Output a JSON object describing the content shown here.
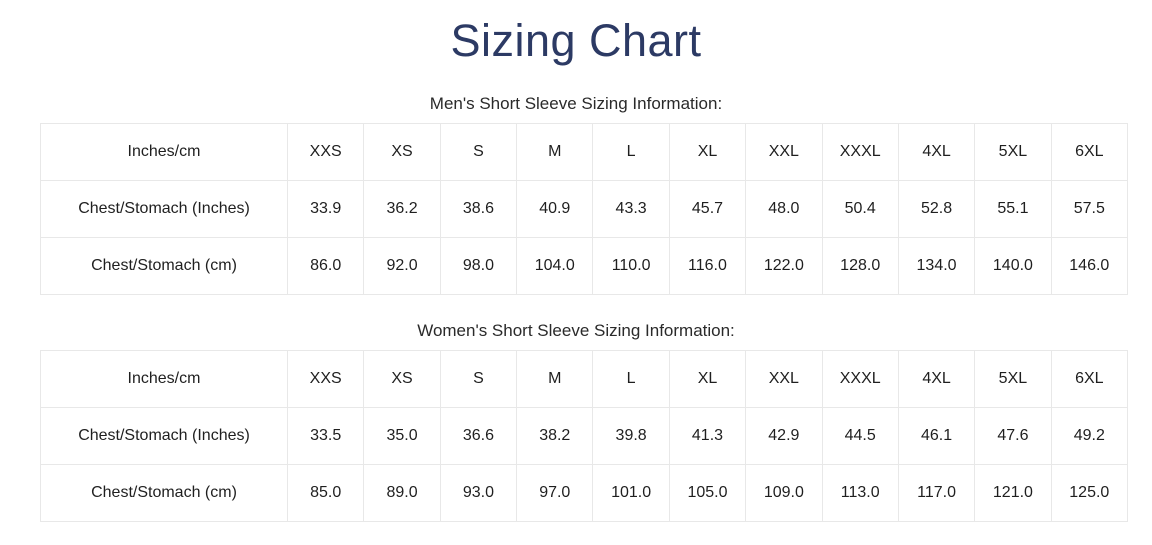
{
  "page_title": "Sizing Chart",
  "colors": {
    "title": "#2c3a64",
    "body_text": "#1f1f1f",
    "table_border": "#e8e8e8",
    "background": "#ffffff"
  },
  "tables": [
    {
      "caption": "Men's Short Sleeve Sizing Information:",
      "header": [
        "Inches/cm",
        "XXS",
        "XS",
        "S",
        "M",
        "L",
        "XL",
        "XXL",
        "XXXL",
        "4XL",
        "5XL",
        "6XL"
      ],
      "rows": [
        [
          "Chest/Stomach (Inches)",
          "33.9",
          "36.2",
          "38.6",
          "40.9",
          "43.3",
          "45.7",
          "48.0",
          "50.4",
          "52.8",
          "55.1",
          "57.5"
        ],
        [
          "Chest/Stomach (cm)",
          "86.0",
          "92.0",
          "98.0",
          "104.0",
          "110.0",
          "116.0",
          "122.0",
          "128.0",
          "134.0",
          "140.0",
          "146.0"
        ]
      ]
    },
    {
      "caption": "Women's Short Sleeve Sizing Information:",
      "header": [
        "Inches/cm",
        "XXS",
        "XS",
        "S",
        "M",
        "L",
        "XL",
        "XXL",
        "XXXL",
        "4XL",
        "5XL",
        "6XL"
      ],
      "rows": [
        [
          "Chest/Stomach (Inches)",
          "33.5",
          "35.0",
          "36.6",
          "38.2",
          "39.8",
          "41.3",
          "42.9",
          "44.5",
          "46.1",
          "47.6",
          "49.2"
        ],
        [
          "Chest/Stomach (cm)",
          "85.0",
          "89.0",
          "93.0",
          "97.0",
          "101.0",
          "105.0",
          "109.0",
          "113.0",
          "117.0",
          "121.0",
          "125.0"
        ]
      ]
    }
  ],
  "chart_data": [
    {
      "type": "table",
      "title": "Men's Short Sleeve Sizing Information:",
      "columns": [
        "Inches/cm",
        "XXS",
        "XS",
        "S",
        "M",
        "L",
        "XL",
        "XXL",
        "XXXL",
        "4XL",
        "5XL",
        "6XL"
      ],
      "rows": [
        [
          "Chest/Stomach (Inches)",
          33.9,
          36.2,
          38.6,
          40.9,
          43.3,
          45.7,
          48.0,
          50.4,
          52.8,
          55.1,
          57.5
        ],
        [
          "Chest/Stomach (cm)",
          86.0,
          92.0,
          98.0,
          104.0,
          110.0,
          116.0,
          122.0,
          128.0,
          134.0,
          140.0,
          146.0
        ]
      ]
    },
    {
      "type": "table",
      "title": "Women's Short Sleeve Sizing Information:",
      "columns": [
        "Inches/cm",
        "XXS",
        "XS",
        "S",
        "M",
        "L",
        "XL",
        "XXL",
        "XXXL",
        "4XL",
        "5XL",
        "6XL"
      ],
      "rows": [
        [
          "Chest/Stomach (Inches)",
          33.5,
          35.0,
          36.6,
          38.2,
          39.8,
          41.3,
          42.9,
          44.5,
          46.1,
          47.6,
          49.2
        ],
        [
          "Chest/Stomach (cm)",
          85.0,
          89.0,
          93.0,
          97.0,
          101.0,
          105.0,
          109.0,
          113.0,
          117.0,
          121.0,
          125.0
        ]
      ]
    }
  ]
}
